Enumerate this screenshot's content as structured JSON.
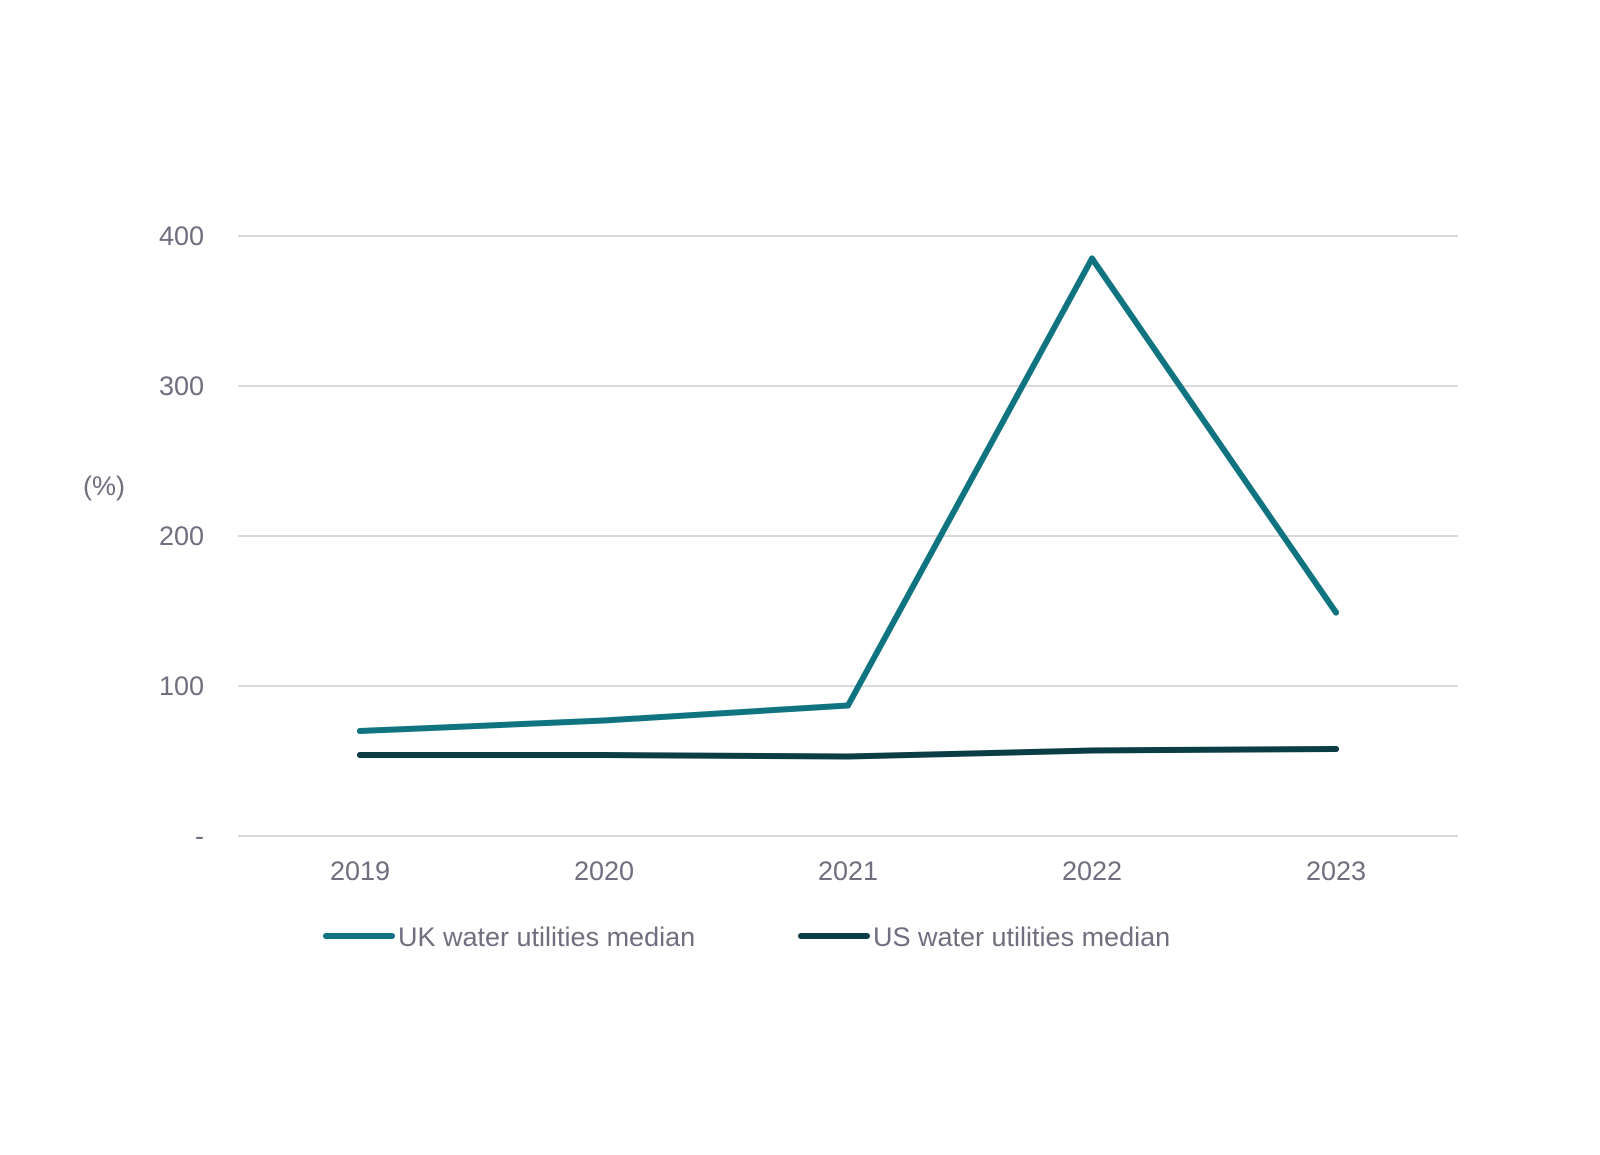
{
  "chart_data": {
    "type": "line",
    "title": "",
    "xlabel": "",
    "ylabel": "(%)",
    "categories": [
      "2019",
      "2020",
      "2021",
      "2022",
      "2023"
    ],
    "y_ticks": [
      {
        "value": 0,
        "label": "-"
      },
      {
        "value": 100,
        "label": "100"
      },
      {
        "value": 200,
        "label": "200"
      },
      {
        "value": 300,
        "label": "300"
      },
      {
        "value": 400,
        "label": "400"
      }
    ],
    "ylim": [
      0,
      400
    ],
    "grid": true,
    "legend_position": "bottom",
    "series": [
      {
        "name": "UK water utilities median",
        "color": "#0f7480",
        "values": [
          70,
          77,
          87,
          385,
          149
        ]
      },
      {
        "name": "US water utilities median",
        "color": "#0b3d44",
        "values": [
          54,
          54,
          53,
          57,
          58
        ]
      }
    ]
  }
}
